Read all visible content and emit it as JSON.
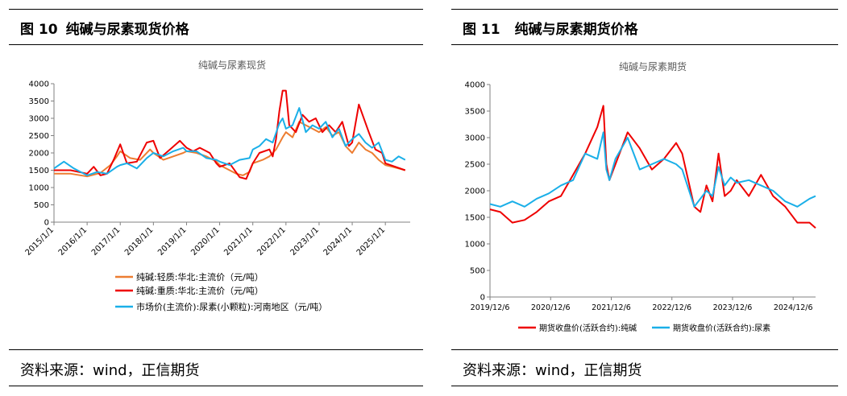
{
  "left": {
    "fig_number": "图 10",
    "fig_title": "纯碱与尿素现货价格",
    "source": "资料来源：wind，正信期货"
  },
  "right": {
    "fig_number": "图 11",
    "fig_title": "纯碱与尿素期货价格",
    "source": "资料来源：wind，正信期货"
  },
  "colors": {
    "orange": "#ED7D31",
    "red": "#EE0000",
    "blue": "#1AAFE8",
    "axis": "#808080",
    "text": "#595959"
  },
  "chart_data": [
    {
      "type": "line",
      "title": "纯碱与尿素现货",
      "ylim": [
        0,
        4000
      ],
      "yticks": [
        "0",
        "500",
        "1000",
        "1500",
        "2000",
        "2500",
        "3000",
        "3500",
        "4000"
      ],
      "xlim": [
        2015.0,
        2025.75
      ],
      "xticks": [
        "2015/1/1",
        "2016/1/1",
        "2017/1/1",
        "2018/1/1",
        "2019/1/1",
        "2020/1/1",
        "2021/1/1",
        "2022/1/1",
        "2023/1/1",
        "2024/1/1",
        "2025/1/1"
      ],
      "legend_position": "bottom",
      "series": [
        {
          "name": "纯碱:轻质:华北:主流价（元/吨）",
          "color": "orange",
          "x": [
            2015.0,
            2015.5,
            2016.0,
            2016.4,
            2016.7,
            2016.9,
            2017.0,
            2017.3,
            2017.6,
            2017.9,
            2018.0,
            2018.3,
            2018.6,
            2018.9,
            2019.0,
            2019.3,
            2019.6,
            2019.9,
            2020.0,
            2020.3,
            2020.5,
            2020.7,
            2020.9,
            2021.0,
            2021.3,
            2021.5,
            2021.7,
            2021.9,
            2022.0,
            2022.2,
            2022.4,
            2022.6,
            2022.8,
            2023.0,
            2023.2,
            2023.4,
            2023.6,
            2023.8,
            2024.0,
            2024.2,
            2024.4,
            2024.6,
            2024.8,
            2025.0,
            2025.2,
            2025.4,
            2025.6
          ],
          "y": [
            1400,
            1400,
            1320,
            1420,
            1650,
            1900,
            2050,
            1850,
            1800,
            2100,
            2000,
            1800,
            1900,
            2000,
            2050,
            2000,
            1900,
            1750,
            1650,
            1500,
            1400,
            1350,
            1450,
            1700,
            1800,
            1900,
            2100,
            2450,
            2600,
            2450,
            2900,
            2800,
            2700,
            2600,
            2750,
            2500,
            2600,
            2200,
            2000,
            2300,
            2100,
            2000,
            1800,
            1650,
            1600,
            1550,
            1500
          ]
        },
        {
          "name": "纯碱:重质:华北:主流价（元/吨）",
          "color": "red",
          "x": [
            2015.0,
            2015.5,
            2016.0,
            2016.2,
            2016.4,
            2016.6,
            2016.8,
            2017.0,
            2017.2,
            2017.5,
            2017.8,
            2018.0,
            2018.2,
            2018.5,
            2018.8,
            2019.0,
            2019.2,
            2019.4,
            2019.7,
            2019.9,
            2020.0,
            2020.3,
            2020.6,
            2020.8,
            2021.0,
            2021.2,
            2021.5,
            2021.6,
            2021.7,
            2021.8,
            2021.9,
            2022.0,
            2022.1,
            2022.3,
            2022.5,
            2022.7,
            2022.9,
            2023.1,
            2023.3,
            2023.5,
            2023.7,
            2023.9,
            2024.0,
            2024.2,
            2024.5,
            2024.7,
            2024.9,
            2025.0,
            2025.3,
            2025.6
          ],
          "y": [
            1500,
            1500,
            1400,
            1600,
            1350,
            1400,
            1800,
            2250,
            1700,
            1750,
            2300,
            2350,
            1850,
            2100,
            2350,
            2150,
            2050,
            2150,
            2000,
            1700,
            1600,
            1700,
            1300,
            1250,
            1700,
            2000,
            2100,
            1900,
            2400,
            3200,
            3800,
            3800,
            2800,
            2600,
            3100,
            2900,
            3000,
            2600,
            2800,
            2600,
            2900,
            2200,
            2300,
            3400,
            2600,
            2100,
            2000,
            1700,
            1600,
            1500
          ]
        },
        {
          "name": "市场价(主流价):尿素(小颗粒):河南地区（元/吨）",
          "color": "blue",
          "x": [
            2015.0,
            2015.3,
            2015.6,
            2016.0,
            2016.3,
            2016.6,
            2016.9,
            2017.0,
            2017.2,
            2017.5,
            2017.8,
            2018.0,
            2018.3,
            2018.6,
            2018.9,
            2019.0,
            2019.3,
            2019.6,
            2019.9,
            2020.0,
            2020.3,
            2020.6,
            2020.9,
            2021.0,
            2021.2,
            2021.4,
            2021.6,
            2021.8,
            2021.9,
            2022.0,
            2022.2,
            2022.4,
            2022.6,
            2022.8,
            2023.0,
            2023.2,
            2023.4,
            2023.6,
            2023.8,
            2024.0,
            2024.2,
            2024.4,
            2024.6,
            2024.8,
            2025.0,
            2025.2,
            2025.4,
            2025.6
          ],
          "y": [
            1550,
            1750,
            1550,
            1350,
            1450,
            1400,
            1600,
            1650,
            1700,
            1550,
            1850,
            2000,
            1900,
            2050,
            2150,
            2050,
            2050,
            1850,
            1800,
            1750,
            1650,
            1800,
            1850,
            2100,
            2200,
            2400,
            2300,
            2850,
            3000,
            2700,
            2800,
            3300,
            2600,
            2800,
            2700,
            2900,
            2450,
            2700,
            2200,
            2400,
            2550,
            2300,
            2150,
            2300,
            1800,
            1750,
            1900,
            1800
          ]
        }
      ]
    },
    {
      "type": "line",
      "title": "纯碱与尿素期货",
      "ylim": [
        0,
        4000
      ],
      "yticks": [
        "0",
        "500",
        "1000",
        "1500",
        "2000",
        "2500",
        "3000",
        "3500",
        "4000"
      ],
      "xlim": [
        2019.93,
        2025.3
      ],
      "xticks": [
        "2019/12/6",
        "2020/12/6",
        "2021/12/6",
        "2022/12/6",
        "2023/12/6",
        "2024/12/6"
      ],
      "legend_position": "bottom",
      "series": [
        {
          "name": "期货收盘价(活跃合约):纯碱",
          "color": "red",
          "x": [
            2019.93,
            2020.1,
            2020.3,
            2020.5,
            2020.7,
            2020.9,
            2021.1,
            2021.3,
            2021.5,
            2021.7,
            2021.8,
            2021.85,
            2021.9,
            2022.0,
            2022.2,
            2022.4,
            2022.6,
            2022.8,
            2023.0,
            2023.1,
            2023.3,
            2023.4,
            2023.5,
            2023.6,
            2023.7,
            2023.8,
            2023.9,
            2024.0,
            2024.2,
            2024.4,
            2024.6,
            2024.8,
            2025.0,
            2025.2,
            2025.3
          ],
          "y": [
            1650,
            1600,
            1400,
            1450,
            1600,
            1800,
            1900,
            2300,
            2700,
            3200,
            3600,
            2500,
            2200,
            2500,
            3100,
            2800,
            2400,
            2600,
            2900,
            2700,
            1700,
            1600,
            2100,
            1800,
            2700,
            1900,
            2000,
            2200,
            1900,
            2300,
            1900,
            1700,
            1400,
            1400,
            1300
          ]
        },
        {
          "name": "期货收盘价(活跃合约):尿素",
          "color": "blue",
          "x": [
            2019.93,
            2020.1,
            2020.3,
            2020.5,
            2020.7,
            2020.9,
            2021.1,
            2021.3,
            2021.5,
            2021.7,
            2021.8,
            2021.85,
            2021.9,
            2022.0,
            2022.2,
            2022.4,
            2022.6,
            2022.8,
            2023.0,
            2023.1,
            2023.3,
            2023.4,
            2023.5,
            2023.6,
            2023.7,
            2023.8,
            2023.9,
            2024.0,
            2024.2,
            2024.4,
            2024.6,
            2024.8,
            2025.0,
            2025.2,
            2025.3
          ],
          "y": [
            1750,
            1700,
            1800,
            1700,
            1850,
            1950,
            2100,
            2200,
            2700,
            2600,
            3100,
            2400,
            2200,
            2600,
            3000,
            2400,
            2500,
            2600,
            2500,
            2400,
            1700,
            1850,
            2000,
            1900,
            2450,
            2100,
            2250,
            2150,
            2200,
            2100,
            2000,
            1800,
            1700,
            1850,
            1900
          ]
        }
      ]
    }
  ]
}
